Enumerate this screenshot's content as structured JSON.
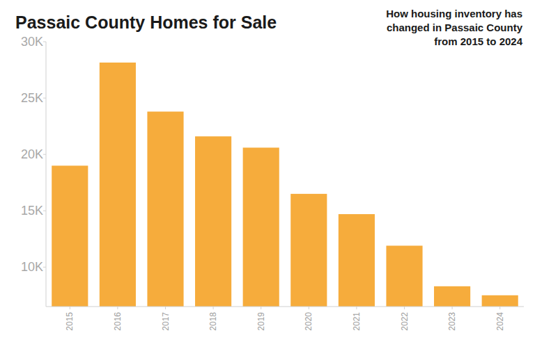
{
  "chart_data": {
    "type": "bar",
    "title": "Passaic County Homes for Sale",
    "subtitle": "How housing inventory has changed in Passaic County from 2015 to 2024",
    "categories": [
      "2015",
      "2016",
      "2017",
      "2018",
      "2019",
      "2020",
      "2021",
      "2022",
      "2023",
      "2024"
    ],
    "values": [
      19000,
      28150,
      23800,
      21600,
      20600,
      16500,
      14700,
      11900,
      8300,
      7500
    ],
    "color": "#f6ac3c",
    "ylim": [
      6500,
      30000
    ],
    "yticks": [
      {
        "value": 10000,
        "label": "10K"
      },
      {
        "value": 15000,
        "label": "15K"
      },
      {
        "value": 20000,
        "label": "20K"
      },
      {
        "value": 25000,
        "label": "25K"
      },
      {
        "value": 30000,
        "label": "30K"
      }
    ],
    "grid": false
  }
}
